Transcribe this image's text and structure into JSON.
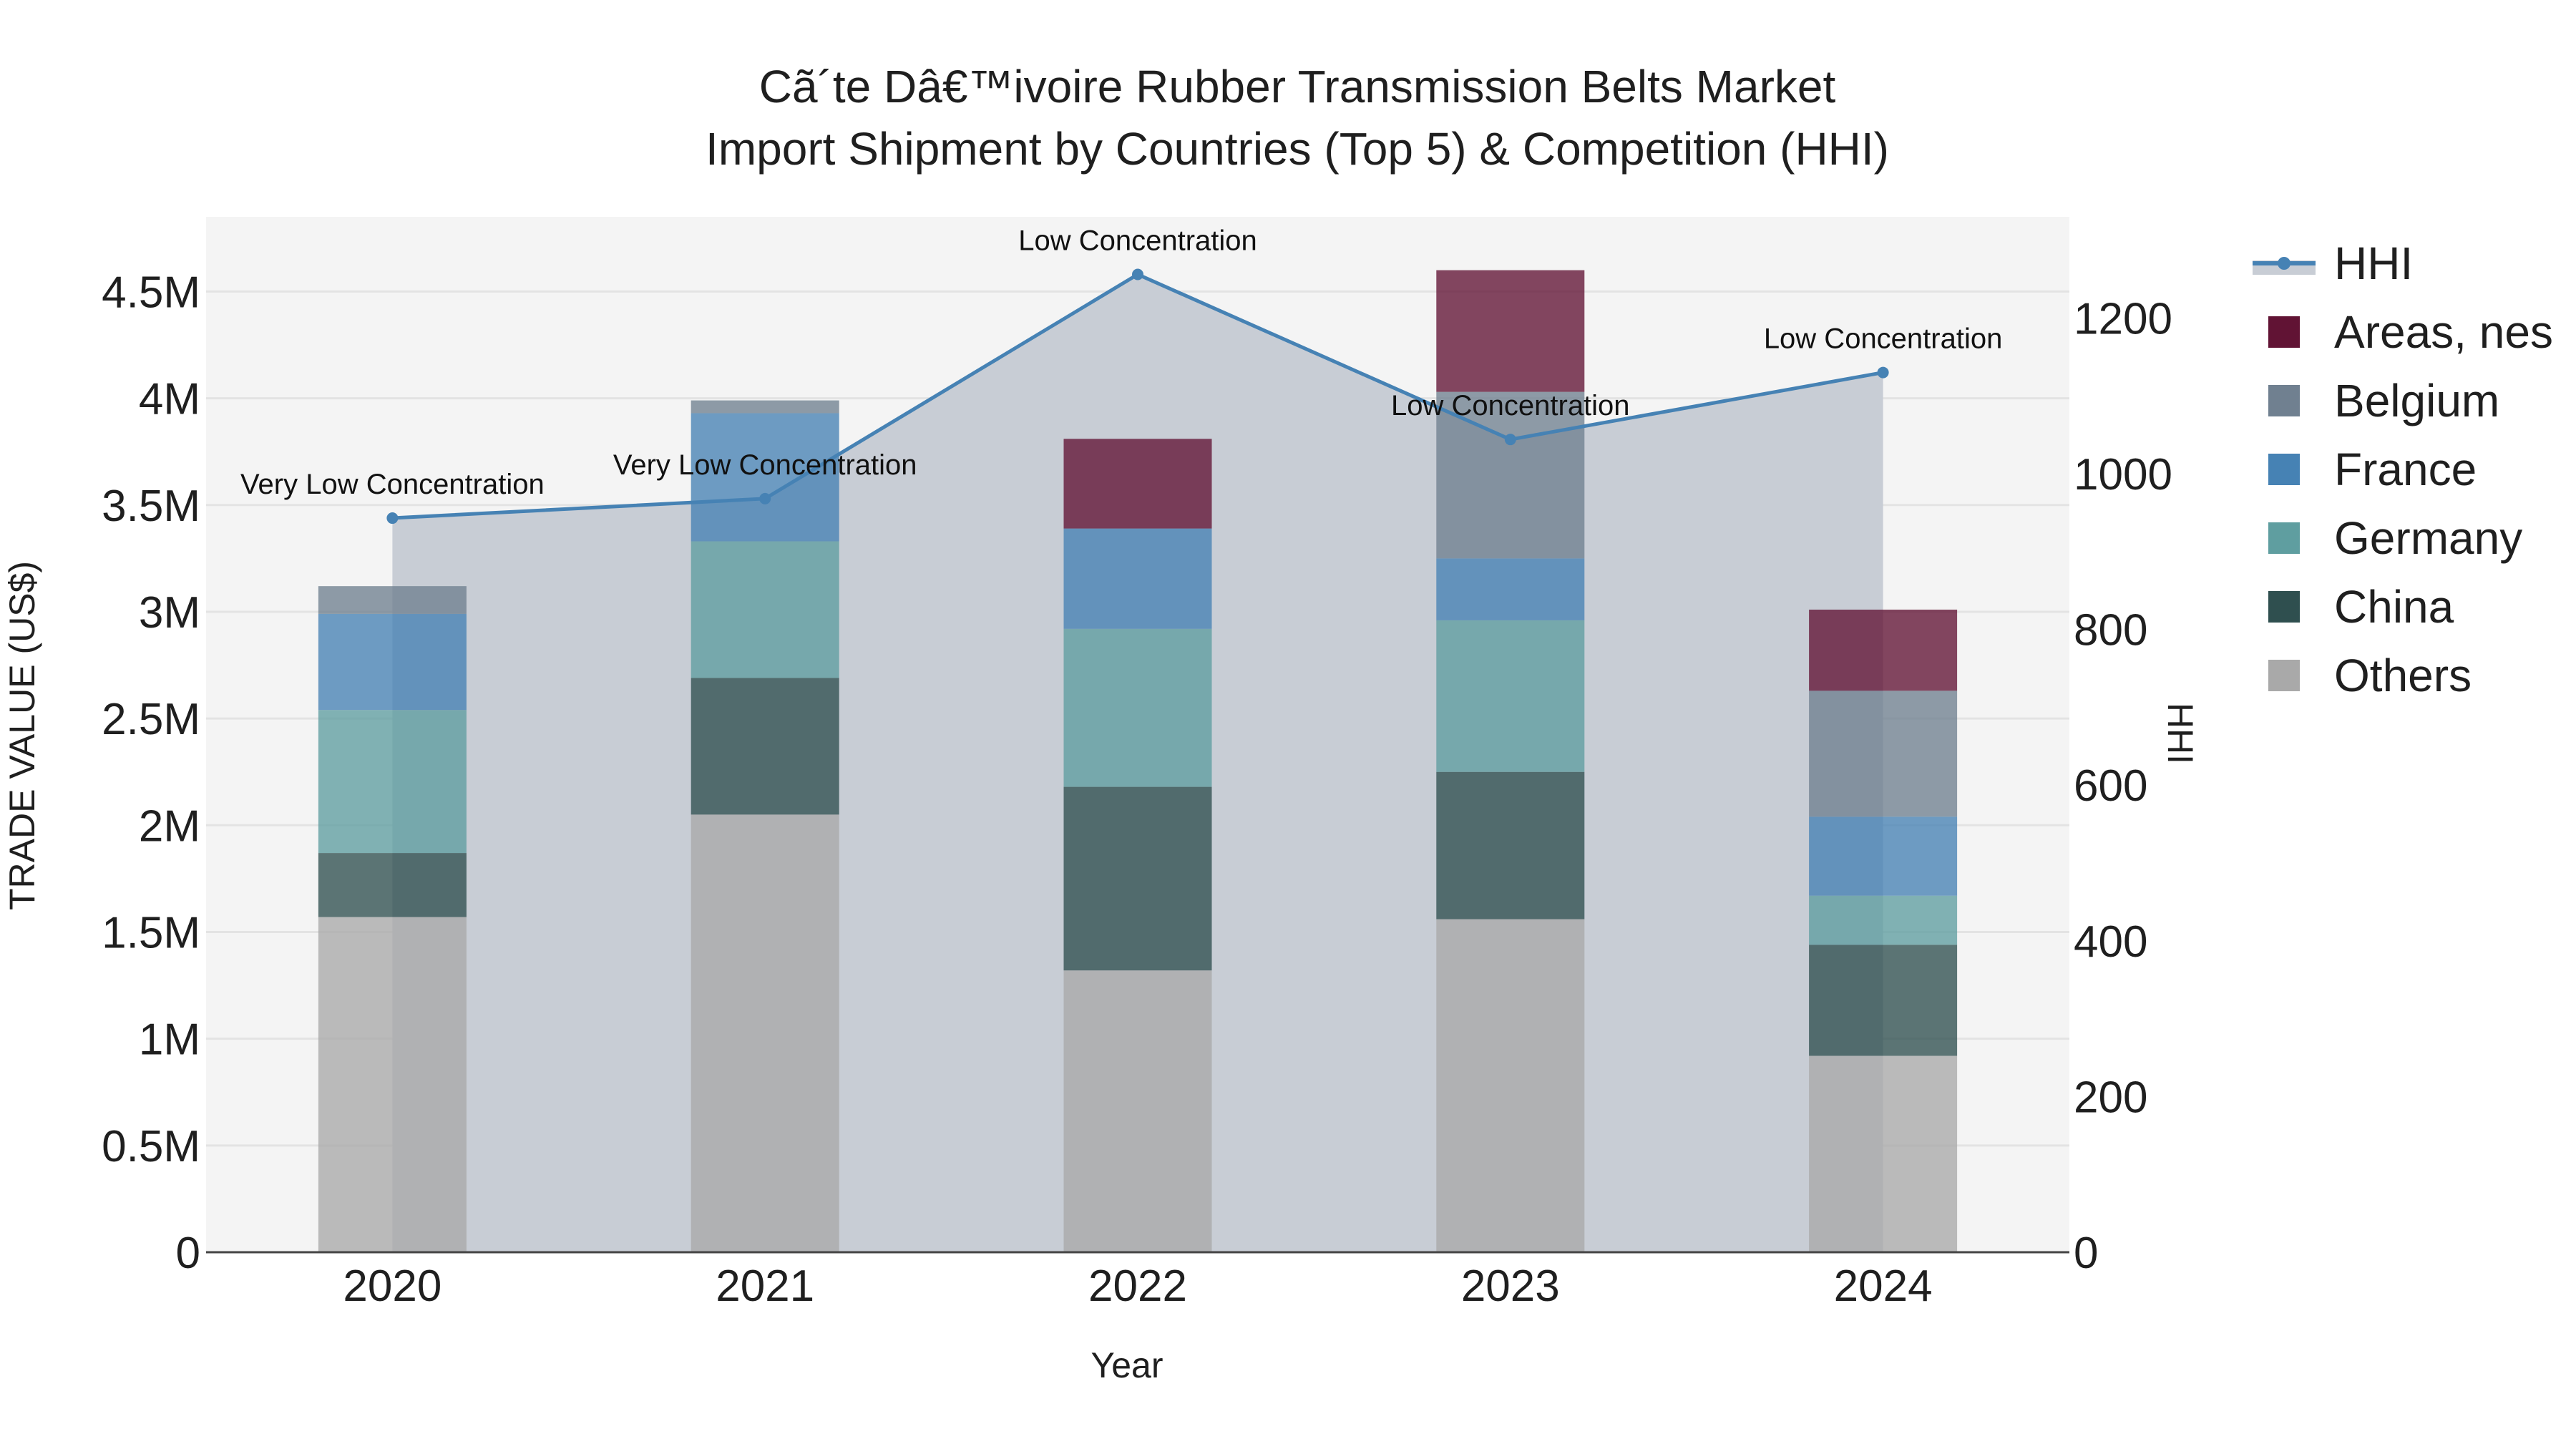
{
  "chart_data": {
    "type": "bar",
    "title_lines": [
      "Cã´te Dâ€™ivoire Rubber Transmission Belts Market",
      "Import Shipment by Countries (Top 5) & Competition (HHI)"
    ],
    "xlabel": "Year",
    "ylabel": "TRADE VALUE (US$)",
    "y2label": "HHI",
    "categories": [
      "2020",
      "2021",
      "2022",
      "2023",
      "2024"
    ],
    "ylim": [
      0,
      4850000
    ],
    "y2lim": [
      0,
      1330
    ],
    "yticks": [
      0,
      500000,
      1000000,
      1500000,
      2000000,
      2500000,
      3000000,
      3500000,
      4000000,
      4500000
    ],
    "ytick_labels": [
      "0",
      "0.5M",
      "1M",
      "1.5M",
      "2M",
      "2.5M",
      "3M",
      "3.5M",
      "4M",
      "4.5M"
    ],
    "y2ticks": [
      0,
      200,
      400,
      600,
      800,
      1000,
      1200
    ],
    "y2tick_labels": [
      "0",
      "200",
      "400",
      "600",
      "800",
      "1000",
      "1200"
    ],
    "series": [
      {
        "name": "Others",
        "color": "#a9a9a9",
        "values": [
          1570000,
          2050000,
          1320000,
          1560000,
          920000
        ]
      },
      {
        "name": "China",
        "color": "#2f4f4f",
        "values": [
          300000,
          640000,
          860000,
          690000,
          520000
        ]
      },
      {
        "name": "Germany",
        "color": "#5f9ea0",
        "values": [
          670000,
          640000,
          740000,
          710000,
          230000
        ]
      },
      {
        "name": "France",
        "color": "#4682b4",
        "values": [
          450000,
          600000,
          470000,
          290000,
          370000
        ]
      },
      {
        "name": "Belgium",
        "color": "#708090",
        "values": [
          130000,
          60000,
          0,
          780000,
          590000
        ]
      },
      {
        "name": "Areas, nes",
        "color": "#611334",
        "values": [
          0,
          0,
          420000,
          570000,
          380000
        ]
      }
    ],
    "hhi": {
      "name": "HHI",
      "color": "#4682b4",
      "values": [
        943,
        968,
        1256,
        1044,
        1130
      ],
      "annotations": [
        "Very Low Concentration",
        "Very Low Concentration",
        "Low Concentration",
        "Low Concentration",
        "Low Concentration"
      ]
    },
    "legend_order": [
      "HHI",
      "Areas, nes",
      "Belgium",
      "France",
      "Germany",
      "China",
      "Others"
    ],
    "legend_position": "right",
    "grid": true
  }
}
